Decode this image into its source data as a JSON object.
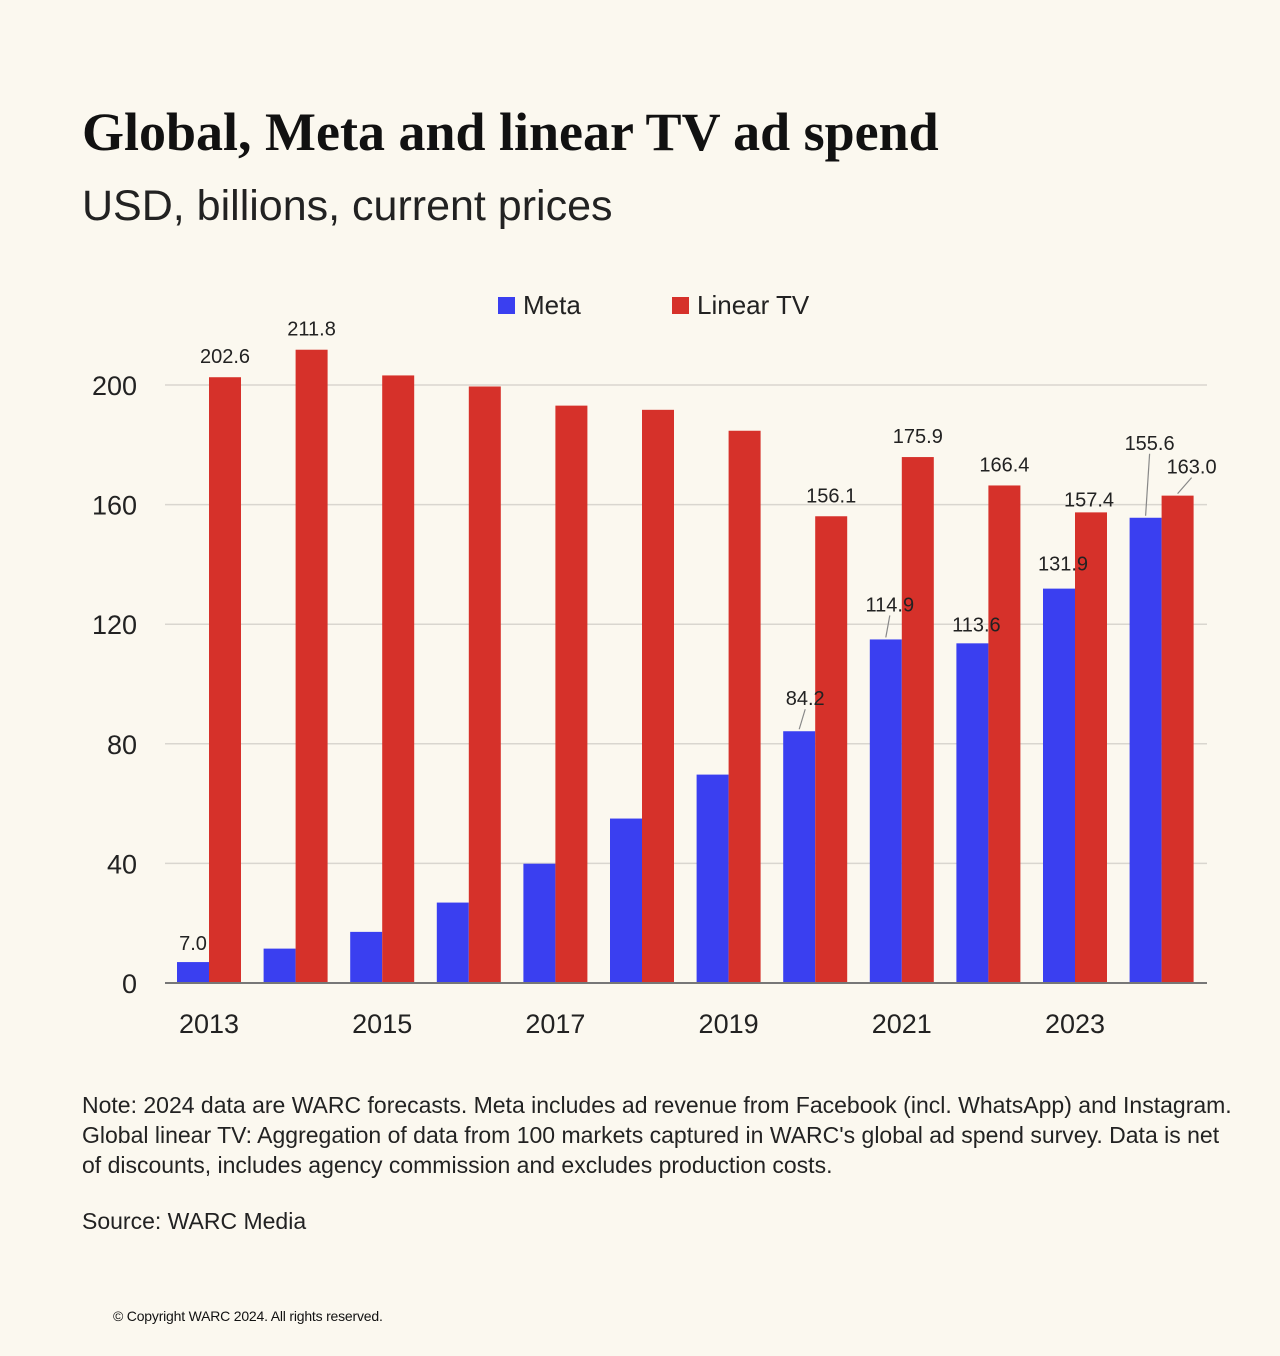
{
  "title": "Global, Meta and linear TV ad spend",
  "subtitle": "USD, billions, current prices",
  "note": "Note: 2024 data are WARC forecasts. Meta includes ad revenue from Facebook (incl. WhatsApp) and Instagram. Global linear TV: Aggregation of data from 100 markets captured in WARC's global ad spend survey. Data is net of discounts, includes agency commission and excludes production costs.",
  "source": "Source: WARC Media",
  "copyright": "© Copyright WARC 2024. All rights reserved.",
  "colors": {
    "meta": "#3a3ff0",
    "linear_tv": "#d6312a",
    "grid": "#d9d6cf",
    "axis": "#777777",
    "text": "#222222",
    "background": "#fbf8ef"
  },
  "chart_data": {
    "type": "bar",
    "categories": [
      "2013",
      "2014",
      "2015",
      "2016",
      "2017",
      "2018",
      "2019",
      "2020",
      "2021",
      "2022",
      "2023",
      "2024"
    ],
    "x_tick_labels": [
      "2013",
      "",
      "2015",
      "",
      "2017",
      "",
      "2019",
      "",
      "2021",
      "",
      "2023",
      ""
    ],
    "series": [
      {
        "name": "Meta",
        "values": [
          7.0,
          11.5,
          17.1,
          26.9,
          39.9,
          55.0,
          69.7,
          84.2,
          114.9,
          113.6,
          131.9,
          155.6
        ],
        "data_labels": [
          "7.0",
          "",
          "",
          "",
          "",
          "",
          "",
          "84.2",
          "114.9",
          "113.6",
          "131.9",
          "155.6"
        ]
      },
      {
        "name": "Linear TV",
        "values": [
          202.6,
          211.8,
          203.2,
          199.5,
          193.1,
          191.7,
          184.7,
          156.1,
          175.9,
          166.4,
          157.4,
          163.0
        ],
        "data_labels": [
          "202.6",
          "211.8",
          "",
          "",
          "",
          "",
          "",
          "156.1",
          "175.9",
          "166.4",
          "157.4",
          "163.0"
        ]
      }
    ],
    "y_ticks": [
      0,
      40,
      80,
      120,
      160,
      200
    ],
    "ylim": [
      0,
      212
    ],
    "xlabel": "",
    "ylabel": "",
    "grid": true,
    "legend": "top-center"
  }
}
